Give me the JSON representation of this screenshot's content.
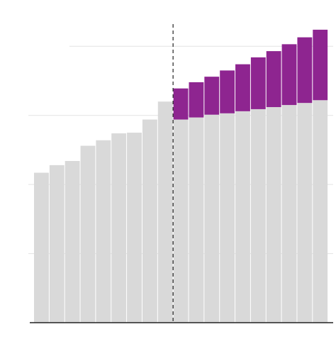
{
  "chart_data": {
    "type": "stacked-bar",
    "categories": [
      null,
      null,
      null,
      null,
      null,
      null,
      null,
      null,
      null,
      null,
      null,
      null,
      null,
      null,
      null,
      null,
      null,
      null,
      null
    ],
    "series": [
      {
        "color": "#d9d9d9",
        "values": [
          2.17,
          2.28,
          2.34,
          2.56,
          2.64,
          2.74,
          2.75,
          2.94,
          3.2,
          2.94,
          2.97,
          3.01,
          3.03,
          3.06,
          3.09,
          3.12,
          3.15,
          3.18,
          3.22
        ]
      },
      {
        "color": "#8e2590",
        "values": [
          null,
          null,
          null,
          null,
          null,
          null,
          null,
          null,
          null,
          0.45,
          0.51,
          0.55,
          0.62,
          0.68,
          0.75,
          0.81,
          0.88,
          0.95,
          1.02
        ]
      }
    ],
    "ylim": [
      0,
      4.67
    ],
    "gridlines": [
      1,
      2,
      3,
      4
    ]
  }
}
